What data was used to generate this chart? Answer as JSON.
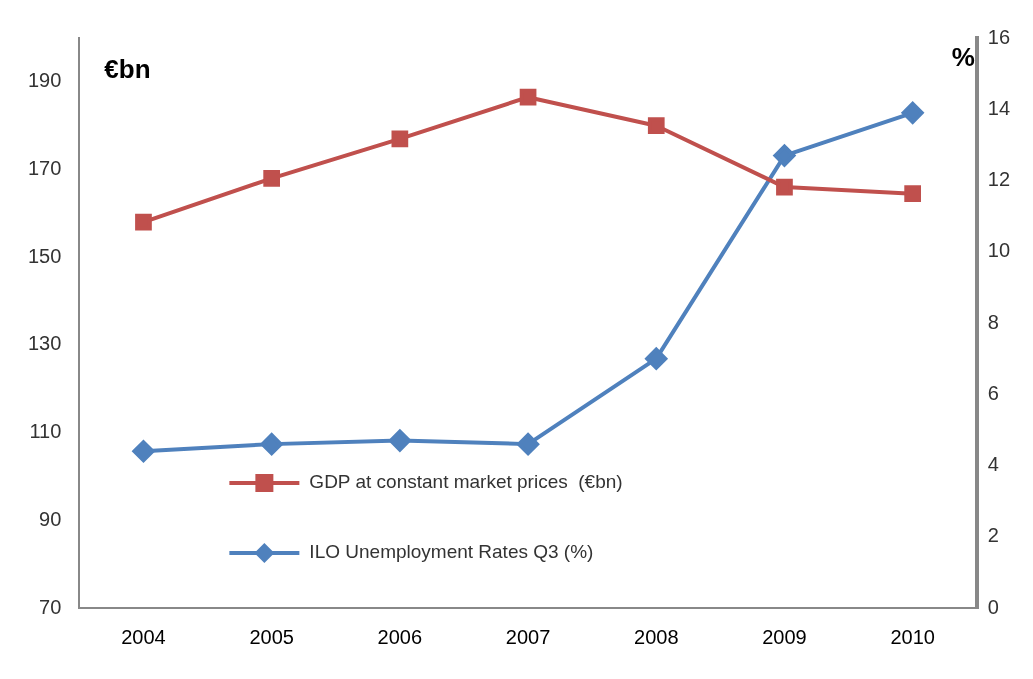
{
  "chart_data": {
    "type": "line",
    "categories": [
      "2004",
      "2005",
      "2006",
      "2007",
      "2008",
      "2009",
      "2010"
    ],
    "ylabel": "€bn",
    "y2label": "%",
    "ylim": [
      70,
      200
    ],
    "yticks": [
      70,
      90,
      110,
      130,
      150,
      170,
      190
    ],
    "y2lim": [
      0,
      16
    ],
    "y2ticks": [
      0,
      2,
      4,
      6,
      8,
      10,
      12,
      14,
      16
    ],
    "grid": false,
    "legend": "bottom",
    "series": [
      {
        "name": "GDP at constant market prices  (€bn)",
        "color": "#c0504d",
        "marker": "square",
        "values": [
          158,
          168,
          177,
          186.5,
          180,
          166,
          164.5
        ]
      },
      {
        "name": "ILO Unemployment Rates Q3 (%)",
        "color": "#4f81bd",
        "marker": "diamond",
        "axis": "y2",
        "values": [
          4.4,
          4.6,
          4.7,
          4.6,
          7.0,
          12.7,
          13.9
        ]
      }
    ]
  }
}
